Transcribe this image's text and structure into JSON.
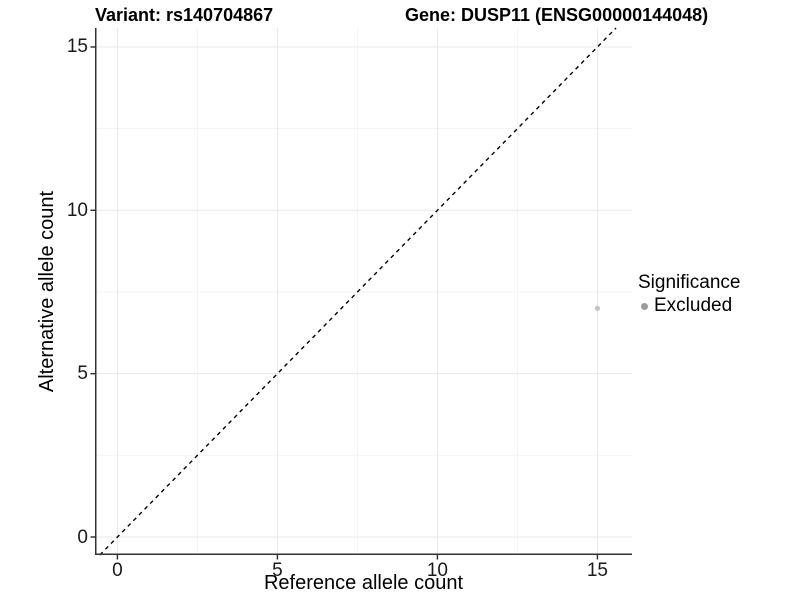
{
  "titles": {
    "left": "Variant: rs140704867",
    "right": "Gene: DUSP11 (ENSG00000144048)"
  },
  "chart_data": {
    "type": "scatter",
    "title_left": "Variant: rs140704867",
    "title_right": "Gene: DUSP11 (ENSG00000144048)",
    "xlabel": "Reference allele count",
    "ylabel": "Alternative allele count",
    "xlim": [
      -0.7,
      16.08
    ],
    "ylim": [
      -0.55,
      15.58
    ],
    "xticks": [
      0,
      5,
      10,
      15
    ],
    "yticks": [
      0,
      5,
      10,
      15
    ],
    "xminor": [
      2.5,
      7.5,
      12.5
    ],
    "yminor": [
      2.5,
      7.5,
      12.5
    ],
    "grid": true,
    "points": [
      {
        "x": 15,
        "y": 7,
        "series": "Excluded",
        "color": "#c3c3c3"
      }
    ],
    "reference_line": {
      "kind": "identity",
      "slope": 1,
      "intercept": 0,
      "style": "dashed",
      "color": "#000000"
    },
    "legend": {
      "position": "right",
      "title": "Significance",
      "items": [
        {
          "label": "Excluded",
          "color": "#9b9b9b"
        }
      ]
    },
    "style": {
      "background": "#ffffff",
      "major_grid": "#e8e8e8",
      "minor_grid": "#f3f3f3",
      "axis_line": "#333333",
      "tick_mark": "#333333",
      "tick_label_color": "#1a1a1a",
      "text_color": "#000000"
    }
  }
}
